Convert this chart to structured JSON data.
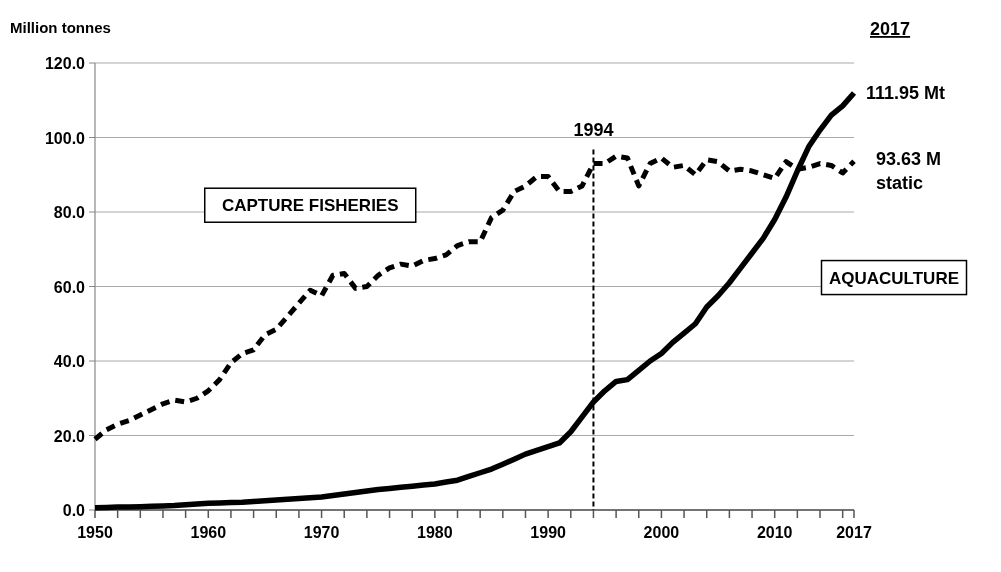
{
  "chart_data": {
    "type": "line",
    "ylabel": "Million tonnes",
    "x": [
      1950,
      1951,
      1952,
      1953,
      1954,
      1955,
      1956,
      1957,
      1958,
      1959,
      1960,
      1961,
      1962,
      1963,
      1964,
      1965,
      1966,
      1967,
      1968,
      1969,
      1970,
      1971,
      1972,
      1973,
      1974,
      1975,
      1976,
      1977,
      1978,
      1979,
      1980,
      1981,
      1982,
      1983,
      1984,
      1985,
      1986,
      1987,
      1988,
      1989,
      1990,
      1991,
      1992,
      1993,
      1994,
      1995,
      1996,
      1997,
      1998,
      1999,
      2000,
      2001,
      2002,
      2003,
      2004,
      2005,
      2006,
      2007,
      2008,
      2009,
      2010,
      2011,
      2012,
      2013,
      2014,
      2015,
      2016,
      2017
    ],
    "series": [
      {
        "name": "CAPTURE FISHERIES",
        "color": "#000000",
        "line_style": "dashed",
        "values": [
          19,
          21.5,
          23,
          24,
          25.5,
          27,
          28.5,
          29.5,
          29,
          30,
          32,
          35,
          39.5,
          42,
          43,
          47,
          48.5,
          52,
          55.5,
          59,
          57.5,
          63,
          63.5,
          59.5,
          60,
          63,
          65,
          66,
          65.5,
          67,
          67.5,
          68.5,
          71,
          72,
          72,
          78.5,
          80.5,
          85.5,
          87,
          89.5,
          89.5,
          85.5,
          85.5,
          87,
          93,
          93,
          95,
          94.5,
          87,
          93,
          94.5,
          92,
          92.5,
          90,
          94,
          93.5,
          91,
          91.5,
          91,
          90,
          89,
          93.5,
          91.5,
          92,
          93,
          92.5,
          90.5,
          93.63
        ]
      },
      {
        "name": "AQUACULTURE",
        "color": "#000000",
        "line_style": "solid",
        "values": [
          0.6,
          0.7,
          0.8,
          0.8,
          0.9,
          1,
          1.1,
          1.2,
          1.4,
          1.6,
          1.8,
          1.9,
          2,
          2.1,
          2.3,
          2.5,
          2.7,
          2.9,
          3.1,
          3.3,
          3.5,
          3.9,
          4.3,
          4.7,
          5.1,
          5.5,
          5.8,
          6.1,
          6.4,
          6.7,
          7,
          7.5,
          8,
          9,
          10,
          11,
          12.3,
          13.6,
          15,
          16,
          17,
          18,
          21,
          25,
          29,
          32,
          34.5,
          35,
          37.5,
          40,
          42,
          45,
          47.5,
          50,
          54.5,
          57.5,
          61,
          65,
          69,
          73,
          78,
          84,
          91,
          97.5,
          102,
          106,
          108.5,
          111.95
        ]
      }
    ],
    "xlim": [
      1950,
      2017
    ],
    "xticks": [
      1950,
      {
        "value": 1952,
        "label": null
      },
      {
        "value": 1954,
        "label": null
      },
      {
        "value": 1956,
        "label": null
      },
      {
        "value": 1958,
        "label": null
      },
      1960,
      {
        "value": 1962,
        "label": null
      },
      {
        "value": 1964,
        "label": null
      },
      {
        "value": 1966,
        "label": null
      },
      {
        "value": 1968,
        "label": null
      },
      1970,
      {
        "value": 1972,
        "label": null
      },
      {
        "value": 1974,
        "label": null
      },
      {
        "value": 1976,
        "label": null
      },
      {
        "value": 1978,
        "label": null
      },
      1980,
      {
        "value": 1982,
        "label": null
      },
      {
        "value": 1984,
        "label": null
      },
      {
        "value": 1986,
        "label": null
      },
      {
        "value": 1988,
        "label": null
      },
      1990,
      {
        "value": 1992,
        "label": null
      },
      {
        "value": 1994,
        "label": null
      },
      {
        "value": 1996,
        "label": null
      },
      {
        "value": 1998,
        "label": null
      },
      2000,
      {
        "value": 2002,
        "label": null
      },
      {
        "value": 2004,
        "label": null
      },
      {
        "value": 2006,
        "label": null
      },
      {
        "value": 2008,
        "label": null
      },
      2010,
      {
        "value": 2012,
        "label": null
      },
      {
        "value": 2014,
        "label": null
      },
      {
        "value": 2016,
        "label": null
      },
      2017
    ],
    "ylim": [
      0,
      120
    ],
    "yticks": [
      {
        "value": 0,
        "label": "0.0"
      },
      {
        "value": 20,
        "label": "20.0"
      },
      {
        "value": 40,
        "label": "40.0"
      },
      {
        "value": 60,
        "label": "60.0"
      },
      {
        "value": 80,
        "label": "80.0"
      },
      {
        "value": 100,
        "label": "100.0"
      },
      {
        "value": 120,
        "label": "120.0"
      }
    ],
    "grid": "y",
    "ref_lines": [
      {
        "axis": "x",
        "value": 1994,
        "label": "1994",
        "line_style": "dashed"
      }
    ],
    "annotations": [
      "2017",
      {
        "text": "111.95 Mt",
        "x": 2017,
        "y": 111.95
      },
      {
        "text": "93.63 M static",
        "x": 2017,
        "y": 93.63
      }
    ]
  }
}
